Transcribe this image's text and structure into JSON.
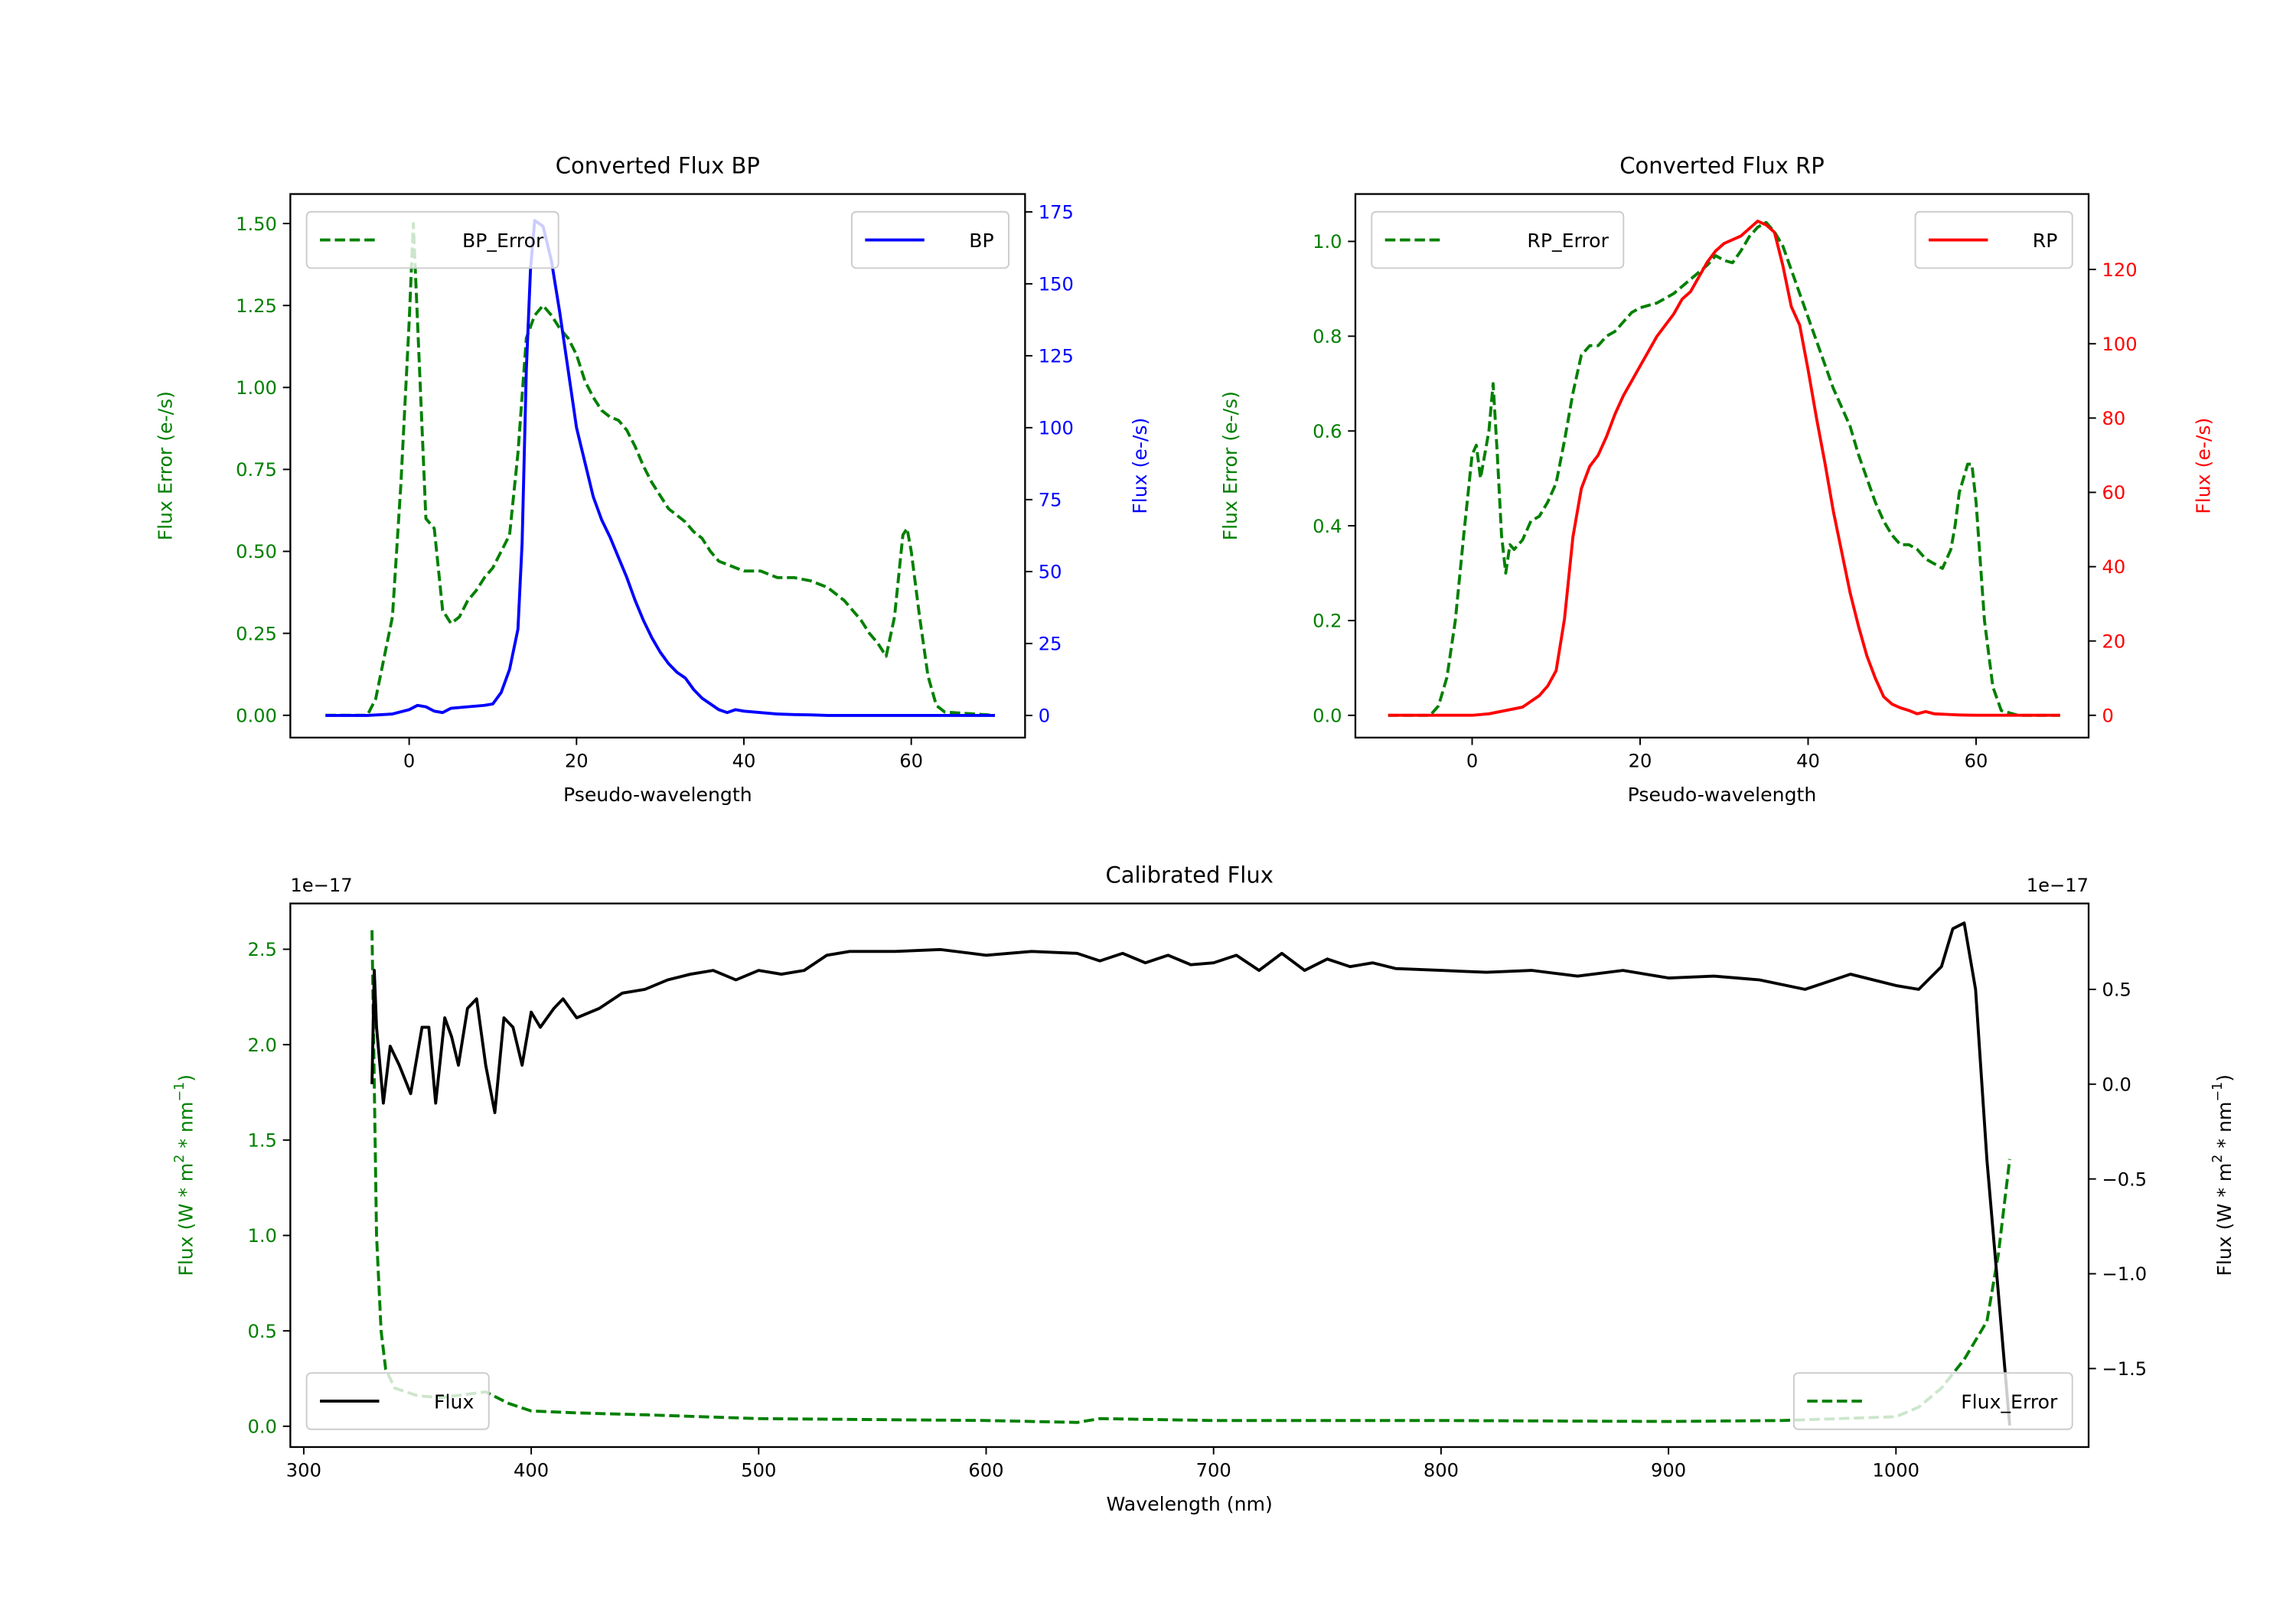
{
  "chart_data": [
    {
      "type": "line",
      "title": "Converted Flux BP",
      "xlabel": "Pseudo-wavelength",
      "ylabel_left": "Flux Error (e-/s)",
      "ylabel_right": "Flux (e-/s)",
      "xlim": [
        -14.2,
        73.6
      ],
      "ylim_left": [
        -0.068,
        1.59
      ],
      "ylim_right": [
        -7.7,
        181.2
      ],
      "xticks": [
        0,
        20,
        40,
        60
      ],
      "xtick_labels": [
        "0",
        "20",
        "40",
        "60"
      ],
      "yticks_left": [
        0,
        0.25,
        0.5,
        0.75,
        1.0,
        1.25,
        1.5
      ],
      "ytick_labels_left": [
        "0.00",
        "0.25",
        "0.50",
        "0.75",
        "1.00",
        "1.25",
        "1.50"
      ],
      "yticks_right": [
        0,
        25,
        50,
        75,
        100,
        125,
        150,
        175
      ],
      "ytick_labels_right": [
        "0",
        "25",
        "50",
        "75",
        "100",
        "125",
        "150",
        "175"
      ],
      "left_color": "#008000",
      "right_color": "#0000ff",
      "legend_left": {
        "label": "BP_Error",
        "placement": "upper-left"
      },
      "legend_right": {
        "label": "BP",
        "placement": "upper-right"
      },
      "series_left": {
        "name": "BP_Error",
        "color": "#008000",
        "style": "dashed",
        "x": [
          -10,
          -5,
          -4,
          -2,
          -1,
          0,
          0.5,
          1,
          2,
          3,
          4,
          5,
          6,
          7,
          8,
          9,
          10,
          11,
          12,
          13,
          14,
          15,
          16,
          17,
          18,
          19,
          20,
          21,
          22,
          23,
          24,
          25,
          26,
          27,
          28,
          29,
          30,
          31,
          32,
          33,
          34,
          35,
          36,
          37,
          38,
          40,
          42,
          44,
          46,
          48,
          50,
          52,
          54,
          55,
          56,
          57,
          58,
          59,
          59.5,
          60,
          61,
          62,
          63,
          64,
          70
        ],
        "y": [
          0,
          0,
          0.05,
          0.3,
          0.7,
          1.2,
          1.5,
          1.2,
          0.6,
          0.57,
          0.32,
          0.28,
          0.3,
          0.35,
          0.38,
          0.42,
          0.45,
          0.5,
          0.55,
          0.8,
          1.15,
          1.22,
          1.25,
          1.22,
          1.18,
          1.15,
          1.1,
          1.02,
          0.97,
          0.93,
          0.91,
          0.9,
          0.87,
          0.82,
          0.76,
          0.71,
          0.67,
          0.63,
          0.61,
          0.59,
          0.56,
          0.54,
          0.5,
          0.47,
          0.46,
          0.44,
          0.44,
          0.42,
          0.42,
          0.41,
          0.39,
          0.35,
          0.29,
          0.25,
          0.22,
          0.18,
          0.3,
          0.55,
          0.57,
          0.5,
          0.3,
          0.12,
          0.03,
          0.01,
          0
        ]
      },
      "series_right": {
        "name": "BP",
        "color": "#0000ff",
        "style": "solid",
        "x": [
          -10,
          -5,
          -2,
          0,
          1,
          2,
          3,
          4,
          5,
          7,
          9,
          10,
          11,
          12,
          13,
          13.5,
          14,
          14.5,
          15,
          16,
          17,
          18,
          19,
          20,
          21,
          22,
          23,
          24,
          25,
          26,
          27,
          28,
          29,
          30,
          31,
          32,
          33,
          34,
          35,
          36,
          37,
          38,
          39,
          40,
          42,
          44,
          46,
          48,
          50,
          55,
          60,
          70
        ],
        "y": [
          0,
          0,
          0.5,
          2,
          3.5,
          3,
          1.5,
          1,
          2.5,
          3,
          3.5,
          4,
          8,
          16,
          30,
          60,
          120,
          155,
          172,
          170,
          158,
          140,
          120,
          100,
          88,
          76,
          68,
          62,
          55,
          48,
          40,
          33,
          27,
          22,
          18,
          15,
          13,
          9,
          6,
          4,
          2,
          1,
          2,
          1.5,
          1,
          0.5,
          0.3,
          0.2,
          0,
          0,
          0,
          0
        ]
      }
    },
    {
      "type": "line",
      "title": "Converted Flux RP",
      "xlabel": "Pseudo-wavelength",
      "ylabel_left": "Flux Error (e-/s)",
      "ylabel_right": "Flux (e-/s)",
      "xlim": [
        -13.9,
        73.4
      ],
      "ylim_left": [
        -0.047,
        1.1
      ],
      "ylim_right": [
        -6,
        140.3
      ],
      "xticks": [
        0,
        20,
        40,
        60
      ],
      "xtick_labels": [
        "0",
        "20",
        "40",
        "60"
      ],
      "yticks_left": [
        0,
        0.2,
        0.4,
        0.6,
        0.8,
        1.0
      ],
      "ytick_labels_left": [
        "0.0",
        "0.2",
        "0.4",
        "0.6",
        "0.8",
        "1.0"
      ],
      "yticks_right": [
        0,
        20,
        40,
        60,
        80,
        100,
        120
      ],
      "ytick_labels_right": [
        "0",
        "20",
        "40",
        "60",
        "80",
        "100",
        "120"
      ],
      "left_color": "#008000",
      "right_color": "#ff0000",
      "legend_left": {
        "label": "RP_Error",
        "placement": "upper-left"
      },
      "legend_right": {
        "label": "RP",
        "placement": "upper-right"
      },
      "series_left": {
        "name": "RP_Error",
        "color": "#008000",
        "style": "dashed",
        "x": [
          -10,
          -5,
          -4,
          -3,
          -2,
          -1,
          0,
          0.5,
          1,
          2,
          2.5,
          3,
          3.5,
          4,
          4.5,
          5,
          6,
          7,
          8,
          9,
          10,
          11,
          12,
          13,
          14,
          15,
          16,
          17,
          18,
          19,
          20,
          22,
          24,
          26,
          28,
          29,
          30,
          31,
          32,
          33,
          34,
          35,
          36,
          37,
          38,
          39,
          40,
          41,
          42,
          43,
          44,
          45,
          46,
          47,
          48,
          49,
          50,
          51,
          52,
          53,
          54,
          55,
          56,
          57,
          57.5,
          58,
          59,
          59.5,
          60,
          61,
          62,
          63,
          65,
          70
        ],
        "y": [
          0,
          0,
          0.02,
          0.08,
          0.2,
          0.38,
          0.55,
          0.57,
          0.5,
          0.6,
          0.7,
          0.55,
          0.38,
          0.3,
          0.36,
          0.35,
          0.37,
          0.41,
          0.42,
          0.45,
          0.49,
          0.58,
          0.68,
          0.76,
          0.78,
          0.78,
          0.8,
          0.81,
          0.83,
          0.85,
          0.86,
          0.87,
          0.89,
          0.92,
          0.95,
          0.97,
          0.96,
          0.955,
          0.98,
          1.01,
          1.03,
          1.04,
          1.02,
          0.99,
          0.94,
          0.89,
          0.84,
          0.79,
          0.74,
          0.69,
          0.65,
          0.61,
          0.55,
          0.5,
          0.45,
          0.41,
          0.38,
          0.36,
          0.36,
          0.35,
          0.33,
          0.32,
          0.31,
          0.35,
          0.4,
          0.47,
          0.53,
          0.53,
          0.45,
          0.2,
          0.06,
          0.01,
          0,
          0
        ]
      },
      "series_right": {
        "name": "RP",
        "color": "#ff0000",
        "style": "solid",
        "x": [
          -10,
          0,
          2,
          4,
          6,
          8,
          9,
          10,
          11,
          12,
          13,
          14,
          15,
          16,
          17,
          18,
          19,
          20,
          21,
          22,
          23,
          24,
          25,
          26,
          27,
          28,
          29,
          30,
          31,
          32,
          33,
          34,
          35,
          36,
          37,
          38,
          39,
          40,
          41,
          42,
          43,
          44,
          45,
          46,
          47,
          48,
          49,
          50,
          51,
          52,
          53,
          54,
          55,
          56,
          58,
          60,
          70
        ],
        "y": [
          0,
          0,
          0.4,
          1.3,
          2.2,
          5.3,
          7.9,
          12,
          26,
          48,
          61,
          67,
          70,
          75,
          81,
          86,
          90,
          94,
          98,
          102,
          105,
          108,
          112,
          114,
          118,
          122,
          125,
          127,
          128,
          129,
          131,
          133,
          132,
          130,
          121,
          110,
          105,
          93,
          80,
          68,
          55,
          44,
          33,
          24,
          16,
          10,
          5,
          3,
          2,
          1.3,
          0.4,
          1,
          0.4,
          0.3,
          0.1,
          0,
          0
        ]
      }
    },
    {
      "type": "line",
      "title": "Calibrated Flux",
      "xlabel": "Wavelength (nm)",
      "ylabel_left": "Flux (W * m^2 * nm^-1)",
      "ylabel_right": "Flux (W * m^2 * nm^-1)",
      "offset_left": "1e−17",
      "offset_right": "1e−17",
      "xlim": [
        294.1,
        1084.7
      ],
      "ylim_left": [
        -0.109,
        2.74
      ],
      "ylim_right": [
        -1.914,
        0.953
      ],
      "xticks": [
        300,
        400,
        500,
        600,
        700,
        800,
        900,
        1000
      ],
      "xtick_labels": [
        "300",
        "400",
        "500",
        "600",
        "700",
        "800",
        "900",
        "1000"
      ],
      "yticks_left": [
        0,
        0.5,
        1.0,
        1.5,
        2.0,
        2.5
      ],
      "ytick_labels_left": [
        "0.0",
        "0.5",
        "1.0",
        "1.5",
        "2.0",
        "2.5"
      ],
      "yticks_right": [
        -1.5,
        -1.0,
        -0.5,
        0.0,
        0.5
      ],
      "ytick_labels_right": [
        "−1.5",
        "−1.0",
        "−0.5",
        "0.0",
        "0.5"
      ],
      "left_color": "#008000",
      "right_color": "#000000",
      "legend_left": {
        "label": "Flux",
        "placement": "lower-left"
      },
      "legend_right": {
        "label": "Flux_Error",
        "placement": "lower-right"
      },
      "series_left": {
        "name": "Flux_Error",
        "color": "#008000",
        "style": "dashed",
        "x": [
          330,
          331,
          332,
          334,
          336,
          340,
          350,
          360,
          380,
          385,
          390,
          400,
          420,
          450,
          500,
          600,
          640,
          650,
          700,
          800,
          900,
          950,
          1000,
          1010,
          1020,
          1030,
          1040,
          1045,
          1048,
          1050
        ],
        "y": [
          2.6,
          1.8,
          1.0,
          0.5,
          0.3,
          0.2,
          0.16,
          0.15,
          0.18,
          0.15,
          0.12,
          0.08,
          0.07,
          0.06,
          0.04,
          0.03,
          0.02,
          0.04,
          0.03,
          0.03,
          0.025,
          0.03,
          0.05,
          0.1,
          0.2,
          0.35,
          0.55,
          0.9,
          1.2,
          1.4
        ]
      },
      "series_right": {
        "name": "Flux",
        "color": "#000000",
        "style": "solid",
        "x": [
          330,
          331,
          332,
          335,
          338,
          342,
          347,
          352,
          355,
          358,
          362,
          365,
          368,
          372,
          376,
          380,
          384,
          388,
          392,
          396,
          400,
          404,
          410,
          414,
          420,
          430,
          440,
          450,
          460,
          470,
          480,
          490,
          500,
          510,
          520,
          530,
          540,
          560,
          580,
          600,
          620,
          640,
          650,
          660,
          670,
          680,
          690,
          700,
          710,
          720,
          730,
          740,
          750,
          760,
          770,
          780,
          800,
          820,
          840,
          860,
          880,
          900,
          920,
          940,
          960,
          980,
          1000,
          1010,
          1020,
          1025,
          1030,
          1035,
          1040,
          1045,
          1050
        ],
        "y": [
          0,
          0.6,
          0.3,
          -0.1,
          0.2,
          0.1,
          -0.05,
          0.3,
          0.3,
          -0.1,
          0.35,
          0.25,
          0.1,
          0.4,
          0.45,
          0.1,
          -0.15,
          0.35,
          0.3,
          0.1,
          0.38,
          0.3,
          0.4,
          0.45,
          0.35,
          0.4,
          0.48,
          0.5,
          0.55,
          0.58,
          0.6,
          0.55,
          0.6,
          0.58,
          0.6,
          0.68,
          0.7,
          0.7,
          0.71,
          0.68,
          0.7,
          0.69,
          0.65,
          0.69,
          0.64,
          0.68,
          0.63,
          0.64,
          0.68,
          0.6,
          0.69,
          0.6,
          0.66,
          0.62,
          0.64,
          0.61,
          0.6,
          0.59,
          0.6,
          0.57,
          0.6,
          0.56,
          0.57,
          0.55,
          0.5,
          0.58,
          0.52,
          0.5,
          0.62,
          0.82,
          0.85,
          0.5,
          -0.4,
          -1.1,
          -1.8
        ]
      }
    }
  ]
}
